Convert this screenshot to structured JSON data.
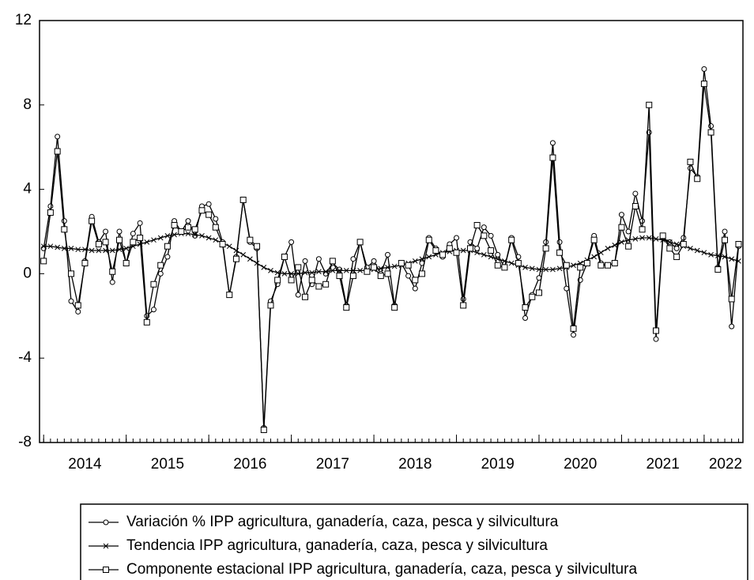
{
  "chart_data": {
    "type": "line",
    "x": [
      2014,
      2014.083,
      2014.167,
      2014.25,
      2014.333,
      2014.417,
      2014.5,
      2014.583,
      2014.667,
      2014.75,
      2014.833,
      2014.917,
      2015,
      2015.083,
      2015.167,
      2015.25,
      2015.333,
      2015.417,
      2015.5,
      2015.583,
      2015.667,
      2015.75,
      2015.833,
      2015.917,
      2016,
      2016.083,
      2016.167,
      2016.25,
      2016.333,
      2016.417,
      2016.5,
      2016.583,
      2016.667,
      2016.75,
      2016.833,
      2016.917,
      2017,
      2017.083,
      2017.167,
      2017.25,
      2017.333,
      2017.417,
      2017.5,
      2017.583,
      2017.667,
      2017.75,
      2017.833,
      2017.917,
      2018,
      2018.083,
      2018.167,
      2018.25,
      2018.333,
      2018.417,
      2018.5,
      2018.583,
      2018.667,
      2018.75,
      2018.833,
      2018.917,
      2019,
      2019.083,
      2019.167,
      2019.25,
      2019.333,
      2019.417,
      2019.5,
      2019.583,
      2019.667,
      2019.75,
      2019.833,
      2019.917,
      2020,
      2020.083,
      2020.167,
      2020.25,
      2020.333,
      2020.417,
      2020.5,
      2020.583,
      2020.667,
      2020.75,
      2020.833,
      2020.917,
      2021,
      2021.083,
      2021.167,
      2021.25,
      2021.333,
      2021.417,
      2021.5,
      2021.583,
      2021.667,
      2021.75,
      2021.833,
      2021.917,
      2022,
      2022.083,
      2022.167,
      2022.25,
      2022.333,
      2022.417
    ],
    "series": [
      {
        "name": "Variación % IPP agricultura, ganadería, caza, pesca y silvicultura",
        "color": "#000000",
        "marker": "circle",
        "values": [
          1.2,
          3.2,
          6.5,
          2.5,
          -1.3,
          -1.8,
          0.6,
          2.7,
          1.5,
          2.0,
          -0.4,
          2.0,
          0.5,
          1.9,
          2.4,
          -2.0,
          -1.7,
          0.0,
          0.8,
          2.5,
          2.0,
          2.5,
          1.8,
          3.2,
          3.3,
          2.6,
          1.5,
          -1.0,
          0.8,
          3.5,
          1.5,
          1.2,
          -7.3,
          -1.3,
          -0.5,
          0.8,
          1.5,
          -1.0,
          0.6,
          -0.5,
          0.7,
          0.0,
          0.5,
          0.2,
          -1.5,
          0.7,
          1.5,
          0.3,
          0.6,
          0.0,
          0.9,
          -1.5,
          0.5,
          -0.1,
          -0.7,
          0.5,
          1.7,
          1.2,
          0.8,
          1.4,
          1.7,
          -1.2,
          1.5,
          1.2,
          2.2,
          1.8,
          0.9,
          0.3,
          1.7,
          0.8,
          -2.1,
          -1.0,
          -0.2,
          1.5,
          6.2,
          1.5,
          -0.7,
          -2.9,
          -0.3,
          0.5,
          1.8,
          0.5,
          0.4,
          0.5,
          2.8,
          2.0,
          3.8,
          2.5,
          6.7,
          -3.1,
          1.7,
          1.5,
          1.2,
          1.7,
          5.0,
          4.6,
          9.7,
          7.0,
          0.3,
          2.0,
          -2.5,
          1.3
        ]
      },
      {
        "name": "Tendencia IPP agricultura, ganadería, caza, pesca y silvicultura",
        "color": "#000000",
        "marker": "x",
        "values": [
          1.3,
          1.3,
          1.25,
          1.2,
          1.2,
          1.15,
          1.15,
          1.1,
          1.1,
          1.1,
          1.1,
          1.15,
          1.2,
          1.3,
          1.4,
          1.5,
          1.6,
          1.7,
          1.8,
          1.85,
          1.9,
          1.9,
          1.85,
          1.8,
          1.7,
          1.6,
          1.45,
          1.3,
          1.1,
          0.9,
          0.7,
          0.5,
          0.3,
          0.15,
          0.05,
          0.0,
          0.0,
          0.0,
          0.05,
          0.05,
          0.1,
          0.1,
          0.15,
          0.15,
          0.15,
          0.15,
          0.15,
          0.15,
          0.2,
          0.25,
          0.3,
          0.35,
          0.4,
          0.5,
          0.6,
          0.7,
          0.8,
          0.9,
          1.0,
          1.05,
          1.1,
          1.1,
          1.1,
          1.0,
          0.9,
          0.8,
          0.7,
          0.6,
          0.5,
          0.4,
          0.3,
          0.25,
          0.2,
          0.2,
          0.2,
          0.25,
          0.3,
          0.4,
          0.5,
          0.65,
          0.8,
          1.0,
          1.2,
          1.35,
          1.5,
          1.6,
          1.65,
          1.7,
          1.7,
          1.65,
          1.6,
          1.5,
          1.4,
          1.3,
          1.2,
          1.1,
          1.0,
          0.9,
          0.85,
          0.8,
          0.7,
          0.6
        ]
      },
      {
        "name": "Componente estacional IPP agricultura, ganadería, caza, pesca y silvicultura",
        "color": "#000000",
        "marker": "square",
        "values": [
          0.6,
          2.9,
          5.8,
          2.1,
          0.0,
          -1.5,
          0.5,
          2.5,
          1.4,
          1.5,
          0.1,
          1.6,
          0.5,
          1.5,
          1.7,
          -2.3,
          -0.5,
          0.4,
          1.3,
          2.3,
          2.0,
          2.2,
          2.1,
          3.0,
          2.8,
          2.2,
          1.4,
          -1.0,
          0.7,
          3.5,
          1.6,
          1.3,
          -7.4,
          -1.5,
          -0.3,
          0.8,
          -0.3,
          0.3,
          -1.1,
          -0.3,
          -0.6,
          -0.5,
          0.6,
          -0.1,
          -1.6,
          -0.1,
          1.5,
          0.1,
          0.3,
          -0.1,
          0.0,
          -1.6,
          0.5,
          0.4,
          -0.3,
          0.0,
          1.6,
          1.1,
          0.9,
          1.2,
          1.0,
          -1.5,
          1.2,
          2.3,
          1.8,
          1.1,
          0.4,
          0.3,
          1.6,
          0.5,
          -1.6,
          -1.1,
          -0.9,
          1.2,
          5.5,
          1.0,
          0.4,
          -2.6,
          0.3,
          0.5,
          1.6,
          0.4,
          0.4,
          0.5,
          2.2,
          1.3,
          3.2,
          2.1,
          8.0,
          -2.7,
          1.8,
          1.2,
          0.8,
          1.4,
          5.3,
          4.5,
          9.0,
          6.7,
          0.2,
          1.6,
          -1.2,
          1.4
        ]
      }
    ],
    "xlim": [
      2013.95,
      2022.47
    ],
    "xticks": [
      {
        "value": 2014,
        "label": "2014"
      },
      {
        "value": 2015,
        "label": "2015"
      },
      {
        "value": 2016,
        "label": "2016"
      },
      {
        "value": 2017,
        "label": "2017"
      },
      {
        "value": 2018,
        "label": "2018"
      },
      {
        "value": 2019,
        "label": "2019"
      },
      {
        "value": 2020,
        "label": "2020"
      },
      {
        "value": 2021,
        "label": "2021"
      },
      {
        "value": 2022,
        "label": "2022"
      }
    ],
    "ylim": [
      -8,
      12
    ],
    "yticks": [
      -8,
      -4,
      0,
      4,
      8,
      12
    ],
    "grid": false
  }
}
